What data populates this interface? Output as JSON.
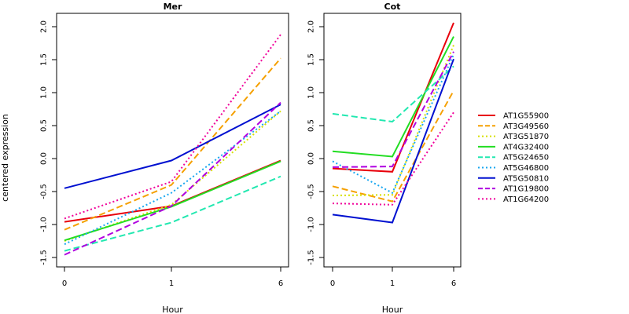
{
  "ylabel": "centered expression",
  "legend": {
    "placement": "right",
    "items": [
      {
        "name": "AT1G55900",
        "color": "#E8000B",
        "dash": "solid"
      },
      {
        "name": "AT3G49560",
        "color": "#F5A000",
        "dash": "dashed"
      },
      {
        "name": "AT3G51870",
        "color": "#D7E000",
        "dash": "dotted"
      },
      {
        "name": "AT4G32400",
        "color": "#22DD22",
        "dash": "solid"
      },
      {
        "name": "AT5G24650",
        "color": "#22E8B0",
        "dash": "dashed"
      },
      {
        "name": "AT5G46800",
        "color": "#1AA7F0",
        "dash": "dotted"
      },
      {
        "name": "AT5G50810",
        "color": "#0010D0",
        "dash": "solid"
      },
      {
        "name": "AT1G19800",
        "color": "#B000E0",
        "dash": "dashed"
      },
      {
        "name": "AT1G64200",
        "color": "#F0009A",
        "dash": "dotted"
      }
    ]
  },
  "chart_data": [
    {
      "type": "line",
      "title": "Mer",
      "xlabel": "Hour",
      "ylabel": "centered expression",
      "categories": [
        "0",
        "1",
        "6"
      ],
      "ylim": [
        -1.6,
        2.1
      ],
      "yticks": [
        -1.5,
        -1.0,
        -0.5,
        0.0,
        0.5,
        1.0,
        1.5,
        2.0
      ],
      "grid": false,
      "series": [
        {
          "name": "AT1G55900",
          "values": [
            -0.96,
            -0.72,
            -0.03
          ]
        },
        {
          "name": "AT3G49560",
          "values": [
            -1.08,
            -0.4,
            1.52
          ]
        },
        {
          "name": "AT3G51870",
          "values": [
            -1.25,
            -0.7,
            0.72
          ]
        },
        {
          "name": "AT4G32400",
          "values": [
            -1.24,
            -0.73,
            -0.04
          ]
        },
        {
          "name": "AT5G24650",
          "values": [
            -1.4,
            -0.97,
            -0.27
          ]
        },
        {
          "name": "AT5G46800",
          "values": [
            -1.3,
            -0.52,
            0.72
          ]
        },
        {
          "name": "AT5G50810",
          "values": [
            -0.45,
            -0.03,
            0.82
          ]
        },
        {
          "name": "AT1G19800",
          "values": [
            -1.46,
            -0.72,
            0.85
          ]
        },
        {
          "name": "AT1G64200",
          "values": [
            -0.91,
            -0.35,
            1.88
          ]
        }
      ]
    },
    {
      "type": "line",
      "title": "Cot",
      "xlabel": "Hour",
      "categories": [
        "0",
        "1",
        "6"
      ],
      "ylim": [
        -1.6,
        2.1
      ],
      "yticks": [
        -1.5,
        -1.0,
        -0.5,
        0.0,
        0.5,
        1.0,
        1.5,
        2.0
      ],
      "grid": false,
      "series": [
        {
          "name": "AT1G55900",
          "values": [
            -0.15,
            -0.2,
            2.06
          ]
        },
        {
          "name": "AT3G49560",
          "values": [
            -0.42,
            -0.65,
            1.03
          ]
        },
        {
          "name": "AT3G51870",
          "values": [
            -0.56,
            -0.55,
            1.72
          ]
        },
        {
          "name": "AT4G32400",
          "values": [
            0.11,
            0.03,
            1.85
          ]
        },
        {
          "name": "AT5G24650",
          "values": [
            0.68,
            0.56,
            1.4
          ]
        },
        {
          "name": "AT5G46800",
          "values": [
            -0.04,
            -0.52,
            1.58
          ]
        },
        {
          "name": "AT5G50810",
          "values": [
            -0.85,
            -0.97,
            1.51
          ]
        },
        {
          "name": "AT1G19800",
          "values": [
            -0.13,
            -0.12,
            1.62
          ]
        },
        {
          "name": "AT1G64200",
          "values": [
            -0.68,
            -0.7,
            0.7
          ]
        }
      ]
    }
  ]
}
